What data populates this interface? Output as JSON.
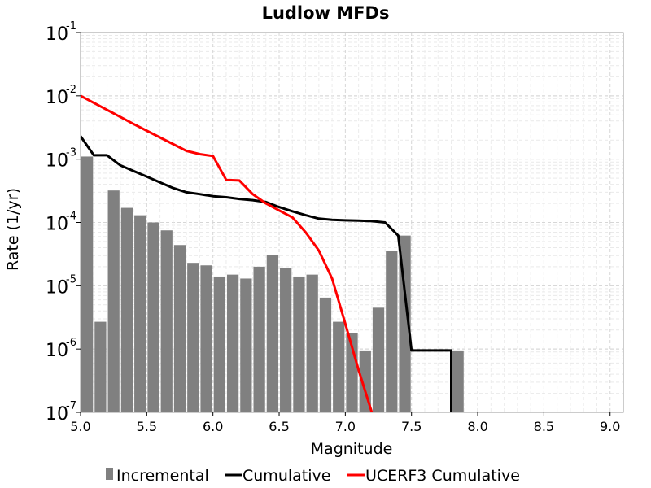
{
  "chart_data": {
    "type": "bar+line",
    "title": "Ludlow MFDs",
    "xlabel": "Magnitude",
    "ylabel": "Rate (1/yr)",
    "xlim": [
      5.0,
      9.1
    ],
    "ylim": [
      1e-07,
      0.1
    ],
    "yscale": "log",
    "grid": true,
    "legend_position": "bottom",
    "x_ticks": [
      "5.0",
      "5.5",
      "6.0",
      "6.5",
      "7.0",
      "7.5",
      "8.0",
      "8.5",
      "9.0"
    ],
    "y_ticks": [
      {
        "base": "10",
        "exp": "-1"
      },
      {
        "base": "10",
        "exp": "-2"
      },
      {
        "base": "10",
        "exp": "-3"
      },
      {
        "base": "10",
        "exp": "-4"
      },
      {
        "base": "10",
        "exp": "-5"
      },
      {
        "base": "10",
        "exp": "-6"
      },
      {
        "base": "10",
        "exp": "-7"
      }
    ],
    "incremental": {
      "name": "Incremental",
      "color": "#808080",
      "bin_width": 0.1,
      "x": [
        5.05,
        5.15,
        5.25,
        5.35,
        5.45,
        5.55,
        5.65,
        5.75,
        5.85,
        5.95,
        6.05,
        6.15,
        6.25,
        6.35,
        6.45,
        6.55,
        6.65,
        6.75,
        6.85,
        6.95,
        7.05,
        7.15,
        7.25,
        7.35,
        7.45,
        7.85
      ],
      "y": [
        0.0011,
        2.7e-06,
        0.00032,
        0.00017,
        0.00013,
        0.0001,
        7.5e-05,
        4.4e-05,
        2.3e-05,
        2.1e-05,
        1.4e-05,
        1.5e-05,
        1.3e-05,
        2e-05,
        3.1e-05,
        1.9e-05,
        1.4e-05,
        1.5e-05,
        6.5e-06,
        2.7e-06,
        1.8e-06,
        9.5e-07,
        4.5e-06,
        3.5e-05,
        6.2e-05,
        9.5e-07
      ]
    },
    "cumulative": {
      "name": "Cumulative",
      "color": "#000000",
      "x": [
        5.0,
        5.1,
        5.2,
        5.3,
        5.4,
        5.5,
        5.6,
        5.7,
        5.8,
        5.9,
        6.0,
        6.1,
        6.2,
        6.3,
        6.4,
        6.5,
        6.6,
        6.7,
        6.8,
        6.9,
        7.0,
        7.1,
        7.2,
        7.3,
        7.4,
        7.5,
        7.6,
        7.7,
        7.8,
        7.8
      ],
      "y": [
        0.0023,
        0.00115,
        0.00115,
        0.0008,
        0.00065,
        0.00053,
        0.00043,
        0.00035,
        0.0003,
        0.00028,
        0.00026,
        0.00025,
        0.000235,
        0.000225,
        0.00021,
        0.000175,
        0.00015,
        0.00013,
        0.000115,
        0.00011,
        0.000108,
        0.000107,
        0.000105,
        0.0001,
        6.2e-05,
        9.5e-07,
        9.5e-07,
        9.5e-07,
        9.5e-07,
        1e-07
      ]
    },
    "ucerf3": {
      "name": "UCERF3 Cumulative",
      "color": "#ff0000",
      "x": [
        5.0,
        5.2,
        5.4,
        5.6,
        5.8,
        5.9,
        6.0,
        6.1,
        6.2,
        6.3,
        6.4,
        6.5,
        6.6,
        6.7,
        6.8,
        6.9,
        7.0,
        7.1,
        7.2,
        7.2
      ],
      "y": [
        0.01,
        0.006,
        0.0036,
        0.0022,
        0.00135,
        0.0012,
        0.00112,
        0.00047,
        0.00046,
        0.00028,
        0.0002,
        0.000155,
        0.00012,
        7e-05,
        3.6e-05,
        1.3e-05,
        2.5e-06,
        4.7e-07,
        1e-07,
        1e-07
      ]
    }
  }
}
